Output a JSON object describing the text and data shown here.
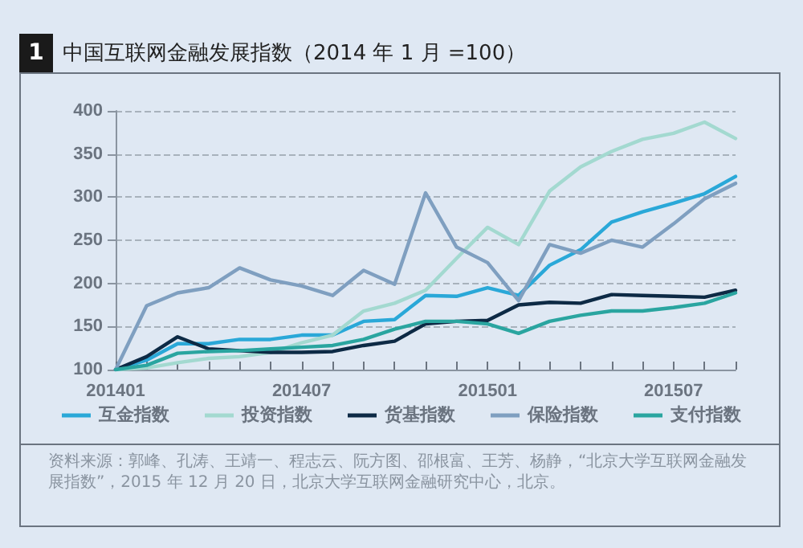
{
  "chart_data": {
    "type": "line",
    "title": "中国互联网金融发展指数（2014 年 1 月 =100）",
    "annotations": [
      "1",
      "资料来源：郭峰、孔涛、王靖一、程志云、阮方图、邵根富、王芳、杨静，“北京大学互联网金融发展指数”，2015 年 12 月 20 日，北京大学互联网金融研究中心，北京。"
    ],
    "categories": [
      "201401",
      null,
      null,
      null,
      null,
      null,
      "201407",
      null,
      null,
      null,
      null,
      null,
      "201501",
      null,
      null,
      null,
      null,
      null,
      "201507",
      null,
      null
    ],
    "series": [
      {
        "name": "互金指数",
        "color": "#2aa8d8",
        "values": [
          100,
          111,
          130,
          130,
          135,
          135,
          140,
          140,
          156,
          158,
          186,
          185,
          195,
          186,
          221,
          239,
          271,
          283,
          293,
          304,
          324
        ]
      },
      {
        "name": "投资指数",
        "color": "#a3d9d0",
        "values": [
          100,
          102,
          108,
          113,
          115,
          120,
          131,
          140,
          168,
          177,
          192,
          229,
          265,
          245,
          307,
          335,
          353,
          367,
          374,
          387,
          368
        ]
      },
      {
        "name": "货基指数",
        "color": "#0d2a45",
        "values": [
          100,
          115,
          138,
          124,
          122,
          120,
          120,
          121,
          128,
          133,
          153,
          156,
          157,
          175,
          178,
          177,
          187,
          186,
          185,
          184,
          192
        ]
      },
      {
        "name": "保险指数",
        "color": "#7f9fc0",
        "values": [
          100,
          174,
          189,
          195,
          218,
          204,
          197,
          186,
          215,
          199,
          305,
          242,
          224,
          180,
          245,
          235,
          250,
          242,
          269,
          298,
          316
        ]
      },
      {
        "name": "支付指数",
        "color": "#2aa5a0",
        "values": [
          100,
          105,
          119,
          121,
          122,
          124,
          126,
          128,
          135,
          147,
          156,
          156,
          153,
          142,
          156,
          163,
          168,
          168,
          172,
          177,
          189
        ]
      }
    ],
    "ylim": [
      100,
      400
    ],
    "yticks": [
      100,
      150,
      200,
      250,
      300,
      350,
      400
    ],
    "grid": "y",
    "legend": "bottom",
    "marker": "none",
    "line_style": "solid"
  }
}
